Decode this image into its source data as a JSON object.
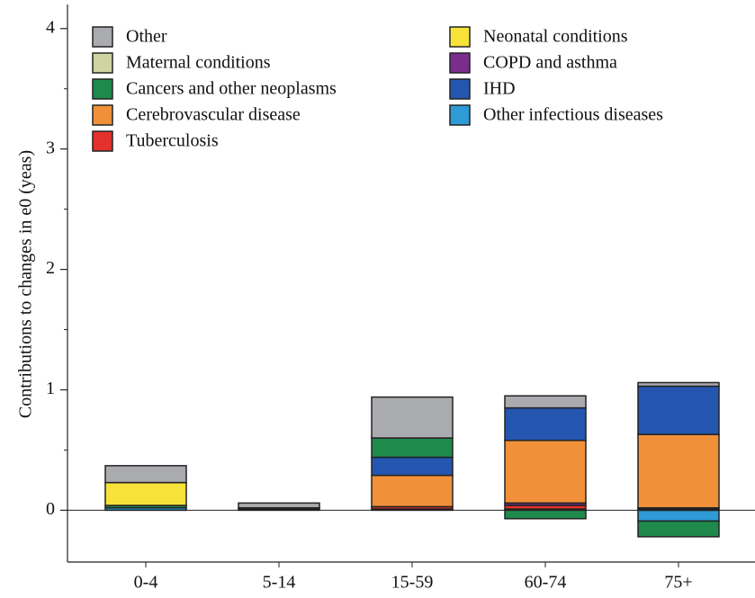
{
  "chart_data": {
    "type": "stacked_bar",
    "y_label": "Contributions to changes in e0 (yeas)",
    "categories": [
      "0-4",
      "5-14",
      "15-59",
      "60-74",
      "75+"
    ],
    "series": [
      {
        "name": "Other infectious diseases",
        "color": "#2e9ad6",
        "values": [
          0.02,
          0.01,
          0.01,
          0.01,
          -0.09
        ]
      },
      {
        "name": "Tuberculosis",
        "color": "#e3322b",
        "values": [
          0,
          0,
          0.02,
          0.03,
          0.01
        ]
      },
      {
        "name": "COPD and asthma",
        "color": "#7b2d8e",
        "values": [
          0,
          0,
          0,
          0.02,
          0.01
        ]
      },
      {
        "name": "Cerebrovascular disease",
        "color": "#f0913a",
        "values": [
          0,
          0,
          0.26,
          0.52,
          0.61
        ]
      },
      {
        "name": "IHD",
        "color": "#2456b0",
        "values": [
          0,
          0,
          0.15,
          0.27,
          0.4
        ]
      },
      {
        "name": "Cancers and other neoplasms",
        "color": "#1f8a4c",
        "values": [
          0.02,
          0.01,
          0.16,
          -0.07,
          -0.13
        ]
      },
      {
        "name": "Maternal conditions",
        "color": "#cfd4a0",
        "values": [
          0,
          0,
          0,
          0,
          0
        ]
      },
      {
        "name": "Neonatal conditions",
        "color": "#f7e23a",
        "values": [
          0.19,
          0,
          0,
          0,
          0
        ]
      },
      {
        "name": "Other",
        "color": "#a9abae",
        "values": [
          0.14,
          0.04,
          0.34,
          0.1,
          0.03
        ]
      }
    ],
    "ylim": [
      -0.43,
      4.2
    ],
    "yticks": [
      0,
      1,
      2,
      3,
      4
    ],
    "minor_yticks": [
      0.5,
      1.5,
      2.5,
      3.5
    ],
    "grid": false,
    "legend": "top"
  }
}
